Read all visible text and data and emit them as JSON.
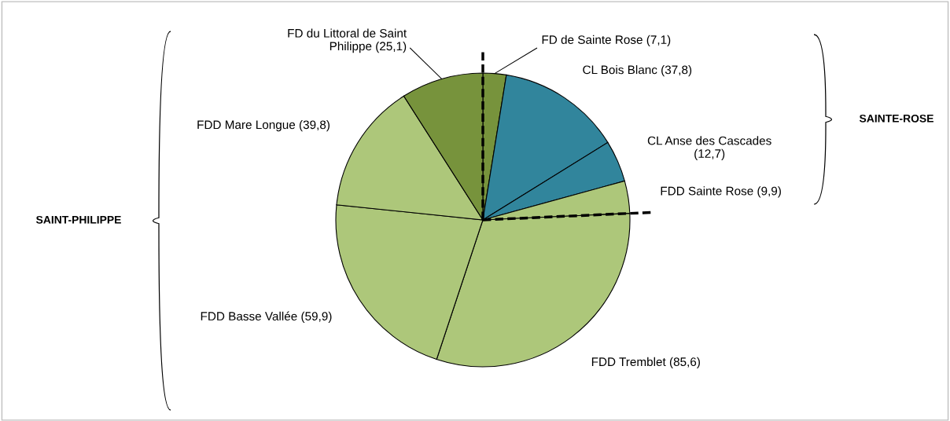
{
  "chart_data": {
    "type": "pie",
    "categories": [
      "FD de Sainte Rose (7,1)",
      "CL Bois Blanc (37,8)",
      "CL Anse des Cascades\n(12,7)",
      "FDD Sainte Rose (9,9)",
      "FDD Tremblet (85,6)",
      "FDD Basse Vallée (59,9)",
      "FDD Mare Longue (39,8)",
      "FD du Littoral de Saint\nPhilippe (25,1)"
    ],
    "values": [
      7.1,
      37.8,
      12.7,
      9.9,
      85.6,
      59.9,
      39.8,
      25.1
    ],
    "colors": [
      "#77933c",
      "#31859c",
      "#31859c",
      "#adc77a",
      "#adc77a",
      "#adc77a",
      "#adc77a",
      "#77933c"
    ],
    "annotations": [
      "SAINTE-ROSE",
      "SAINT-PHILIPPE"
    ]
  }
}
